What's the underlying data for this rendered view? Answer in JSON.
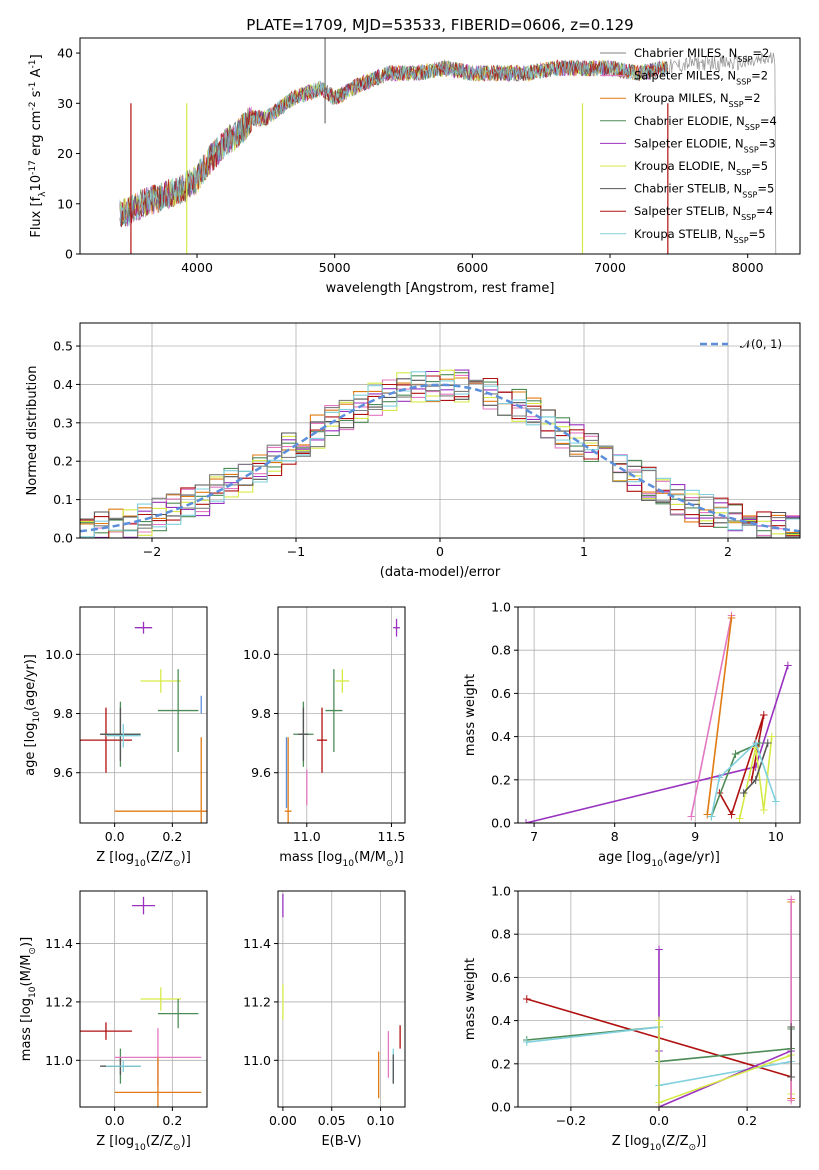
{
  "chart_data": [
    {
      "id": "spectrum",
      "type": "line",
      "title": "PLATE=1709, MJD=53533, FIBERID=0606, z=0.129",
      "xlabel": "wavelength [Angstrom, rest frame]",
      "ylabel": "Flux [f$_\\lambda$10$^{-17}$ erg cm$^{-2}$ s$^{-1}$ A$^{-1}$]",
      "xlim": [
        3150,
        8380
      ],
      "ylim": [
        0,
        43
      ],
      "xticks": [
        4000,
        5000,
        6000,
        7000,
        8000
      ],
      "yticks": [
        0,
        10,
        20,
        30,
        40
      ],
      "grid": false,
      "legend_position": "top-right",
      "data_x": [
        3400,
        3500,
        3600,
        3700,
        3800,
        3900,
        4000,
        4100,
        4200,
        4300,
        4400,
        4500,
        4600,
        4700,
        4800,
        4900,
        5000,
        5200,
        5400,
        5600,
        5800,
        6000,
        6200,
        6400,
        6600,
        6800,
        7000,
        7200,
        7400,
        7600,
        7800,
        8000,
        8200
      ],
      "data_y": [
        7.5,
        8.5,
        10,
        11,
        12,
        13,
        15,
        19,
        22,
        24,
        27,
        27,
        29,
        31,
        32,
        33,
        31,
        34,
        36,
        36,
        37,
        36,
        36,
        36,
        37,
        37,
        37,
        36,
        37,
        38,
        38,
        38,
        39
      ],
      "series": [
        {
          "name": "Chabrier MILES, N$_{SSP}$=2",
          "color": "#808080"
        },
        {
          "name": "Salpeter MILES, N$_{SSP}$=2",
          "color": "#e377c2"
        },
        {
          "name": "Kroupa MILES, N$_{SSP}$=2",
          "color": "#e07a12"
        },
        {
          "name": "Chabrier ELODIE, N$_{SSP}$=4",
          "color": "#4d8c57"
        },
        {
          "name": "Salpeter ELODIE, N$_{SSP}$=3",
          "color": "#9932bf"
        },
        {
          "name": "Kroupa ELODIE, N$_{SSP}$=5",
          "color": "#d6ea47"
        },
        {
          "name": "Chabrier STELIB, N$_{SSP}$=5",
          "color": "#555555"
        },
        {
          "name": "Salpeter STELIB, N$_{SSP}$=4",
          "color": "#b01010"
        },
        {
          "name": "Kroupa STELIB, N$_{SSP}$=5",
          "color": "#80d0dd"
        }
      ]
    },
    {
      "id": "residuals",
      "type": "line",
      "xlabel": "(data-model)/error",
      "ylabel": "Normed distribution",
      "xlim": [
        -2.5,
        2.5
      ],
      "ylim": [
        0,
        0.56
      ],
      "xticks": [
        -2,
        -1,
        0,
        1,
        2
      ],
      "yticks": [
        0.0,
        0.1,
        0.2,
        0.3,
        0.4,
        0.5
      ],
      "grid": true,
      "legend_position": "top-right",
      "legend": "𝒩(0, 1)",
      "gaussian_color": "#5b8fdc"
    },
    {
      "id": "z-age",
      "type": "scatter",
      "xlabel": "Z [log$_{10}$(Z/Z$_\\odot$)]",
      "ylabel": "age  [log$_{10}$(age/yr)]",
      "xlim": [
        -0.12,
        0.32
      ],
      "ylim": [
        9.43,
        10.16
      ],
      "xticks": [
        0.0,
        0.2
      ],
      "yticks": [
        9.6,
        9.8,
        10.0
      ],
      "points": [
        {
          "color": "#b01010",
          "x": -0.03,
          "y": 9.71,
          "xerr": 0.09,
          "yerr": 0.11
        },
        {
          "color": "#4d8c57",
          "x": 0.02,
          "y": 9.73,
          "xerr": 0.07,
          "yerr": 0.11
        },
        {
          "color": "#555555",
          "x": 0.02,
          "y": 9.73,
          "xerr": 0.07,
          "yerr": 0.09
        },
        {
          "color": "#80d0dd",
          "x": 0.03,
          "y": 9.725,
          "xerr": 0.06,
          "yerr": 0.04
        },
        {
          "color": "#9932bf",
          "x": 0.1,
          "y": 10.09,
          "xerr": 0.03,
          "yerr": 0.02
        },
        {
          "color": "#d6ea47",
          "x": 0.16,
          "y": 9.91,
          "xerr": 0.07,
          "yerr": 0.04
        },
        {
          "color": "#4d8c57",
          "x": 0.22,
          "y": 9.81,
          "xerr": 0.07,
          "yerr": 0.14
        },
        {
          "color": "#e07a12",
          "x": 0.3,
          "y": 9.47,
          "xerr": 0.3,
          "yerr": 0.25
        },
        {
          "color": "#5b8fdc",
          "x": 0.3,
          "y": 9.83,
          "xerr": 0.0,
          "yerr": 0.03
        }
      ]
    },
    {
      "id": "mass-age",
      "type": "scatter",
      "xlabel": "mass [log$_{10}$(M/M$_\\odot$)]",
      "xlim": [
        10.83,
        11.58
      ],
      "ylim": [
        9.43,
        10.16
      ],
      "xticks": [
        11.0,
        11.5
      ],
      "yticks": [
        9.6,
        9.8,
        10.0
      ],
      "points": [
        {
          "color": "#5b8fdc",
          "x": 10.88,
          "y": 9.6,
          "xerr": 0.0,
          "yerr": 0.12
        },
        {
          "color": "#e07a12",
          "x": 10.89,
          "y": 9.47,
          "xerr": 0.02,
          "yerr": 0.25
        },
        {
          "color": "#e377c2",
          "x": 11.0,
          "y": 9.55,
          "xerr": 0.0,
          "yerr": 0.06
        },
        {
          "color": "#4d8c57",
          "x": 10.98,
          "y": 9.73,
          "xerr": 0.06,
          "yerr": 0.11
        },
        {
          "color": "#555555",
          "x": 10.98,
          "y": 9.73,
          "xerr": 0.03,
          "yerr": 0.09
        },
        {
          "color": "#b01010",
          "x": 11.09,
          "y": 9.71,
          "xerr": 0.03,
          "yerr": 0.11
        },
        {
          "color": "#4d8c57",
          "x": 11.16,
          "y": 9.81,
          "xerr": 0.05,
          "yerr": 0.14
        },
        {
          "color": "#d6ea47",
          "x": 11.21,
          "y": 9.91,
          "xerr": 0.04,
          "yerr": 0.04
        },
        {
          "color": "#9932bf",
          "x": 11.53,
          "y": 10.09,
          "xerr": 0.02,
          "yerr": 0.03
        }
      ]
    },
    {
      "id": "age-weight",
      "type": "line",
      "xlabel": "age  [log$_{10}$(age/yr)]",
      "ylabel": "mass weight",
      "xlim": [
        6.8,
        10.3
      ],
      "ylim": [
        0,
        1
      ],
      "xticks": [
        7,
        8,
        9,
        10
      ],
      "yticks": [
        0.0,
        0.2,
        0.4,
        0.6,
        0.8,
        1.0
      ],
      "grid": true,
      "series": [
        {
          "color": "#9932bf",
          "x": [
            6.9,
            9.75,
            10.15
          ],
          "y": [
            0.0,
            0.26,
            0.73
          ]
        },
        {
          "color": "#e377c2",
          "x": [
            8.95,
            9.45
          ],
          "y": [
            0.03,
            0.96
          ]
        },
        {
          "color": "#e07a12",
          "x": [
            9.15,
            9.45
          ],
          "y": [
            0.04,
            0.95
          ]
        },
        {
          "color": "#b01010",
          "x": [
            9.3,
            9.45,
            9.85,
            9.7
          ],
          "y": [
            0.14,
            0.04,
            0.5,
            0.2
          ]
        },
        {
          "color": "#4d8c57",
          "x": [
            9.2,
            9.5,
            9.8
          ],
          "y": [
            0.03,
            0.32,
            0.37
          ]
        },
        {
          "color": "#d6ea47",
          "x": [
            9.55,
            9.75,
            9.85,
            9.95
          ],
          "y": [
            0.02,
            0.35,
            0.06,
            0.4
          ]
        },
        {
          "color": "#555555",
          "x": [
            9.6,
            9.75,
            9.9
          ],
          "y": [
            0.14,
            0.2,
            0.37
          ]
        },
        {
          "color": "#80d0dd",
          "x": [
            9.2,
            9.3,
            9.75,
            10.0
          ],
          "y": [
            0.03,
            0.21,
            0.37,
            0.1
          ]
        }
      ]
    },
    {
      "id": "z-mass",
      "type": "scatter",
      "xlabel": "Z [log$_{10}$(Z/Z$_\\odot$)]",
      "ylabel": "mass [log$_{10}$(M/M$_\\odot$)]",
      "xlim": [
        -0.12,
        0.32
      ],
      "ylim": [
        10.84,
        11.58
      ],
      "xticks": [
        0.0,
        0.2
      ],
      "yticks": [
        11.0,
        11.2,
        11.4
      ],
      "points": [
        {
          "color": "#b01010",
          "x": -0.03,
          "y": 11.1,
          "xerr": 0.09,
          "yerr": 0.03
        },
        {
          "color": "#4d8c57",
          "x": 0.02,
          "y": 10.98,
          "xerr": 0.07,
          "yerr": 0.06
        },
        {
          "color": "#555555",
          "x": 0.02,
          "y": 10.98,
          "xerr": 0.07,
          "yerr": 0.03
        },
        {
          "color": "#80d0dd",
          "x": 0.03,
          "y": 10.98,
          "xerr": 0.06,
          "yerr": 0.02
        },
        {
          "color": "#e377c2",
          "x": 0.15,
          "y": 11.01,
          "xerr": 0.15,
          "yerr": 0.1
        },
        {
          "color": "#e07a12",
          "x": 0.15,
          "y": 10.89,
          "xerr": 0.15,
          "yerr": 0.12
        },
        {
          "color": "#9932bf",
          "x": 0.1,
          "y": 11.53,
          "xerr": 0.04,
          "yerr": 0.03
        },
        {
          "color": "#d6ea47",
          "x": 0.16,
          "y": 11.21,
          "xerr": 0.07,
          "yerr": 0.04
        },
        {
          "color": "#4d8c57",
          "x": 0.22,
          "y": 11.16,
          "xerr": 0.07,
          "yerr": 0.05
        }
      ]
    },
    {
      "id": "ebv-mass",
      "type": "scatter",
      "xlabel": "E(B-V)",
      "xlim": [
        -0.005,
        0.125
      ],
      "ylim": [
        10.84,
        11.58
      ],
      "xticks": [
        0.0,
        0.05,
        0.1
      ],
      "yticks": [
        11.0,
        11.2,
        11.4
      ],
      "points": [
        {
          "color": "#9932bf",
          "x": 0.0,
          "y": 11.53,
          "xerr": 0.0,
          "yerr": 0.04
        },
        {
          "color": "#d6ea47",
          "x": 0.0,
          "y": 11.2,
          "xerr": 0.0,
          "yerr": 0.06
        },
        {
          "color": "#e07a12",
          "x": 0.098,
          "y": 10.95,
          "xerr": 0.0,
          "yerr": 0.08
        },
        {
          "color": "#e377c2",
          "x": 0.108,
          "y": 11.02,
          "xerr": 0.0,
          "yerr": 0.08
        },
        {
          "color": "#80d0dd",
          "x": 0.113,
          "y": 10.98,
          "xerr": 0.0,
          "yerr": 0.06
        },
        {
          "color": "#555555",
          "x": 0.113,
          "y": 10.97,
          "xerr": 0.0,
          "yerr": 0.05
        },
        {
          "color": "#b01010",
          "x": 0.12,
          "y": 11.08,
          "xerr": 0.0,
          "yerr": 0.04
        }
      ]
    },
    {
      "id": "z-weight",
      "type": "line",
      "xlabel": "Z [log$_{10}$(Z/Z$_\\odot$)]",
      "ylabel": "mass weight",
      "xlim": [
        -0.32,
        0.32
      ],
      "ylim": [
        0,
        1
      ],
      "xticks": [
        -0.2,
        0.0,
        0.2
      ],
      "yticks": [
        0.0,
        0.2,
        0.4,
        0.6,
        0.8,
        1.0
      ],
      "grid": true,
      "series": [
        {
          "color": "#b01010",
          "x": [
            -0.3,
            0.3,
            0.3
          ],
          "y": [
            0.5,
            0.14,
            0.04
          ]
        },
        {
          "color": "#4d8c57",
          "x": [
            -0.3,
            0.0,
            0.0,
            0.3,
            0.3
          ],
          "y": [
            0.31,
            0.37,
            0.21,
            0.27,
            0.36
          ]
        },
        {
          "color": "#80d0dd",
          "x": [
            -0.3,
            0.0,
            0.0,
            0.3
          ],
          "y": [
            0.3,
            0.37,
            0.1,
            0.21
          ]
        },
        {
          "color": "#9932bf",
          "x": [
            0.0,
            0.0,
            0.0,
            0.3
          ],
          "y": [
            0.73,
            0.26,
            0.0,
            0.26
          ]
        },
        {
          "color": "#d6ea47",
          "x": [
            0.0,
            0.0,
            0.3,
            0.3
          ],
          "y": [
            0.4,
            0.02,
            0.24,
            0.06
          ]
        },
        {
          "color": "#e07a12",
          "x": [
            0.3,
            0.3
          ],
          "y": [
            0.04,
            0.95
          ]
        },
        {
          "color": "#e377c2",
          "x": [
            0.3,
            0.3
          ],
          "y": [
            0.03,
            0.96
          ]
        },
        {
          "color": "#555555",
          "x": [
            0.3,
            0.3
          ],
          "y": [
            0.14,
            0.37
          ]
        }
      ]
    }
  ]
}
